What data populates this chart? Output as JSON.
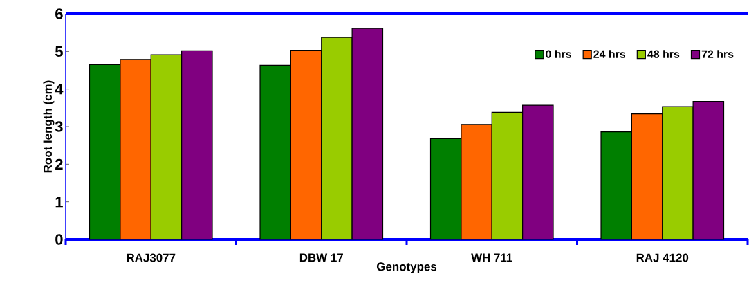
{
  "chart_data": {
    "type": "bar",
    "xlabel": "Genotypes",
    "ylabel": "Root length (cm)",
    "categories": [
      "RAJ3077",
      "DBW 17",
      "WH 711",
      "RAJ 4120"
    ],
    "series": [
      {
        "name": "0 hrs",
        "color": "#007f00",
        "values": [
          4.65,
          4.63,
          2.68,
          2.86
        ]
      },
      {
        "name": "24 hrs",
        "color": "#ff6600",
        "values": [
          4.79,
          5.03,
          3.06,
          3.34
        ]
      },
      {
        "name": "48 hrs",
        "color": "#99cc00",
        "values": [
          4.91,
          5.37,
          3.38,
          3.53
        ]
      },
      {
        "name": "72 hrs",
        "color": "#800080",
        "values": [
          5.02,
          5.61,
          3.57,
          3.67
        ]
      }
    ],
    "ylim": [
      0,
      6
    ],
    "yticks": [
      0,
      1,
      2,
      3,
      4,
      5,
      6
    ],
    "legend": "top right"
  }
}
